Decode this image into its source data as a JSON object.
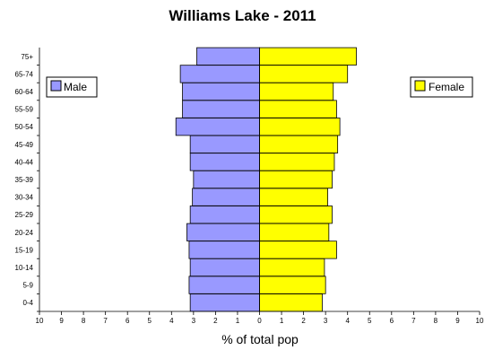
{
  "chart_data": {
    "type": "bar",
    "title": "Williams Lake - 2011",
    "xlabel": "% of total pop",
    "ylabel": "",
    "categories": [
      "0-4",
      "5-9",
      "10-14",
      "15-19",
      "20-24",
      "25-29",
      "30-34",
      "35-39",
      "40-44",
      "45-49",
      "50-54",
      "55-59",
      "60-64",
      "65-74",
      "75+"
    ],
    "series": [
      {
        "name": "Male",
        "side": "left",
        "color": "#9999ff",
        "values": [
          3.15,
          3.2,
          3.15,
          3.2,
          3.3,
          3.15,
          3.05,
          3.0,
          3.15,
          3.15,
          3.8,
          3.5,
          3.5,
          3.6,
          2.85
        ]
      },
      {
        "name": "Female",
        "side": "right",
        "color": "#ffff00",
        "values": [
          2.85,
          3.0,
          2.95,
          3.5,
          3.15,
          3.3,
          3.1,
          3.3,
          3.4,
          3.55,
          3.65,
          3.5,
          3.35,
          4.0,
          4.4
        ]
      }
    ],
    "xlim": [
      -10,
      10
    ],
    "x_ticks": [
      "10",
      "9",
      "8",
      "7",
      "6",
      "5",
      "4",
      "3",
      "2",
      "1",
      "0",
      "1",
      "2",
      "3",
      "4",
      "5",
      "6",
      "7",
      "8",
      "9",
      "10"
    ],
    "grid": false,
    "legend": [
      "left",
      "right"
    ]
  }
}
